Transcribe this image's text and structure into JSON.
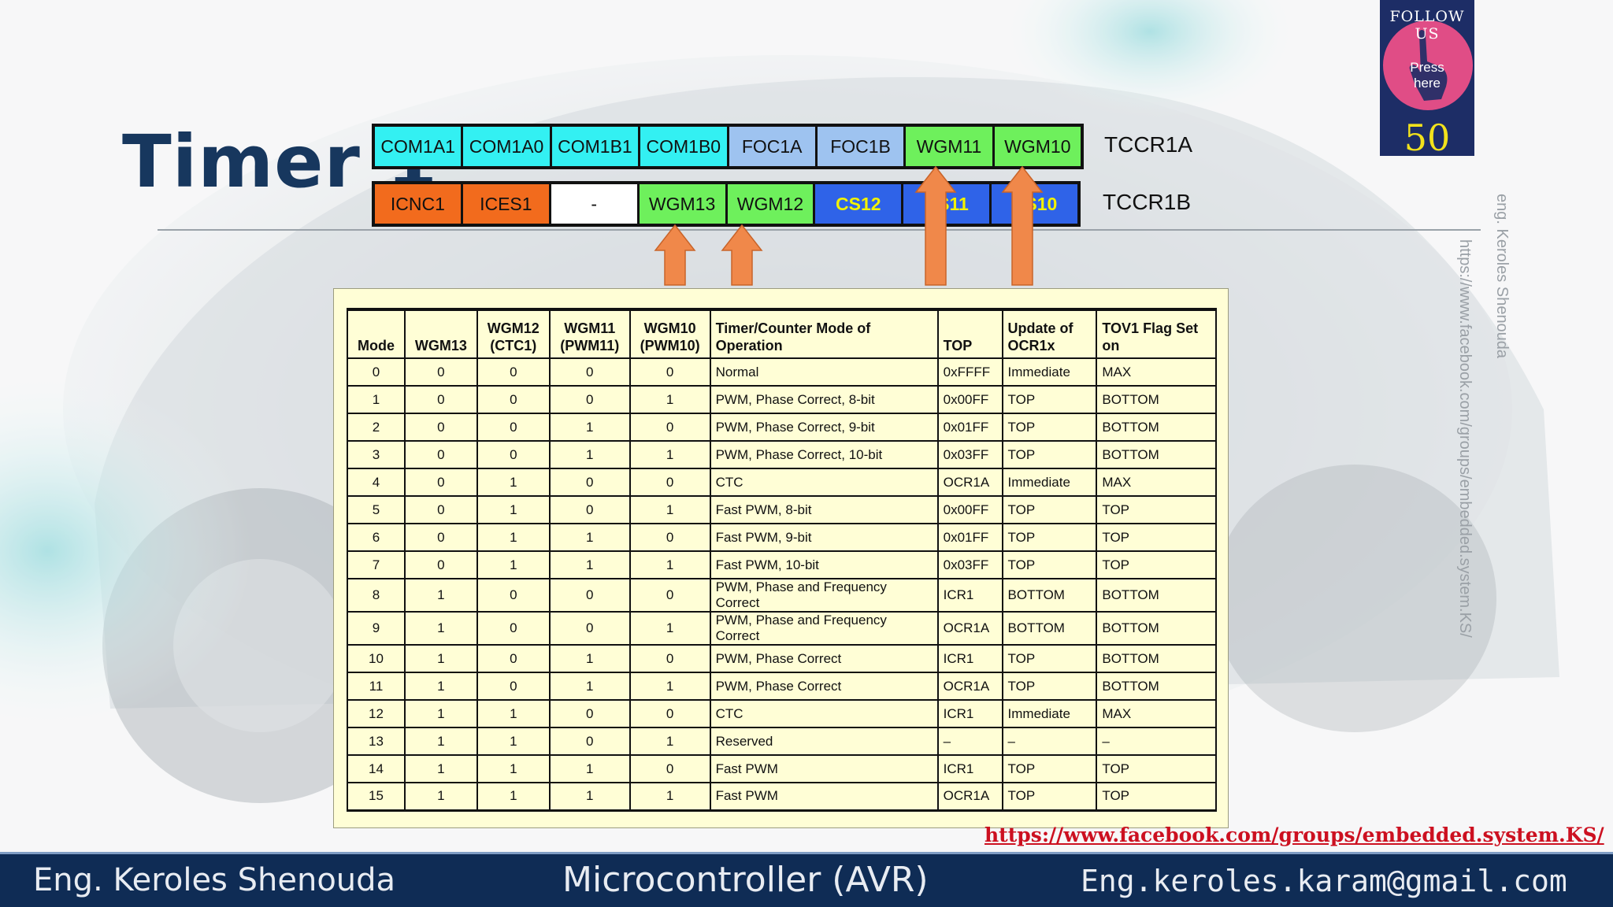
{
  "title": "Timer 1",
  "registers": {
    "tccr1a": {
      "name": "TCCR1A",
      "bits": [
        {
          "label": "COM1A1",
          "color": "#33f0f2",
          "text_color": "#111111"
        },
        {
          "label": "COM1A0",
          "color": "#33f0f2",
          "text_color": "#111111"
        },
        {
          "label": "COM1B1",
          "color": "#33f0f2",
          "text_color": "#111111"
        },
        {
          "label": "COM1B0",
          "color": "#33f0f2",
          "text_color": "#111111"
        },
        {
          "label": "FOC1A",
          "color": "#9ec3f0",
          "text_color": "#111111"
        },
        {
          "label": "FOC1B",
          "color": "#9ec3f0",
          "text_color": "#111111"
        },
        {
          "label": "WGM11",
          "color": "#6ef05c",
          "text_color": "#111111"
        },
        {
          "label": "WGM10",
          "color": "#6ef05c",
          "text_color": "#111111"
        }
      ]
    },
    "tccr1b": {
      "name": "TCCR1B",
      "bits": [
        {
          "label": "ICNC1",
          "color": "#f26b1d",
          "text_color": "#111111"
        },
        {
          "label": "ICES1",
          "color": "#f26b1d",
          "text_color": "#111111"
        },
        {
          "label": "-",
          "color": "#ffffff",
          "text_color": "#111111"
        },
        {
          "label": "WGM13",
          "color": "#6ef05c",
          "text_color": "#111111"
        },
        {
          "label": "WGM12",
          "color": "#6ef05c",
          "text_color": "#111111"
        },
        {
          "label": "CS12",
          "color": "#2f63e8",
          "text_color": "#f2f200"
        },
        {
          "label": "CS11",
          "color": "#2f63e8",
          "text_color": "#f2f200"
        },
        {
          "label": "CS10",
          "color": "#2f63e8",
          "text_color": "#f2f200"
        }
      ]
    }
  },
  "arrow_color": "#f0884a",
  "mode_table": {
    "headers": [
      "Mode",
      "WGM13",
      "WGM12 (CTC1)",
      "WGM11 (PWM11)",
      "WGM10 (PWM10)",
      "Timer/Counter Mode of Operation",
      "TOP",
      "Update of OCR1x",
      "TOV1 Flag Set on"
    ],
    "rows": [
      [
        "0",
        "0",
        "0",
        "0",
        "0",
        "Normal",
        "0xFFFF",
        "Immediate",
        "MAX"
      ],
      [
        "1",
        "0",
        "0",
        "0",
        "1",
        "PWM, Phase Correct, 8-bit",
        "0x00FF",
        "TOP",
        "BOTTOM"
      ],
      [
        "2",
        "0",
        "0",
        "1",
        "0",
        "PWM, Phase Correct, 9-bit",
        "0x01FF",
        "TOP",
        "BOTTOM"
      ],
      [
        "3",
        "0",
        "0",
        "1",
        "1",
        "PWM, Phase Correct, 10-bit",
        "0x03FF",
        "TOP",
        "BOTTOM"
      ],
      [
        "4",
        "0",
        "1",
        "0",
        "0",
        "CTC",
        "OCR1A",
        "Immediate",
        "MAX"
      ],
      [
        "5",
        "0",
        "1",
        "0",
        "1",
        "Fast PWM, 8-bit",
        "0x00FF",
        "TOP",
        "TOP"
      ],
      [
        "6",
        "0",
        "1",
        "1",
        "0",
        "Fast PWM, 9-bit",
        "0x01FF",
        "TOP",
        "TOP"
      ],
      [
        "7",
        "0",
        "1",
        "1",
        "1",
        "Fast PWM, 10-bit",
        "0x03FF",
        "TOP",
        "TOP"
      ],
      [
        "8",
        "1",
        "0",
        "0",
        "0",
        "PWM, Phase and Frequency Correct",
        "ICR1",
        "BOTTOM",
        "BOTTOM"
      ],
      [
        "9",
        "1",
        "0",
        "0",
        "1",
        "PWM, Phase and Frequency Correct",
        "OCR1A",
        "BOTTOM",
        "BOTTOM"
      ],
      [
        "10",
        "1",
        "0",
        "1",
        "0",
        "PWM, Phase Correct",
        "ICR1",
        "TOP",
        "BOTTOM"
      ],
      [
        "11",
        "1",
        "0",
        "1",
        "1",
        "PWM, Phase Correct",
        "OCR1A",
        "TOP",
        "BOTTOM"
      ],
      [
        "12",
        "1",
        "1",
        "0",
        "0",
        "CTC",
        "ICR1",
        "Immediate",
        "MAX"
      ],
      [
        "13",
        "1",
        "1",
        "0",
        "1",
        "Reserved",
        "–",
        "–",
        "–"
      ],
      [
        "14",
        "1",
        "1",
        "1",
        "0",
        "Fast PWM",
        "ICR1",
        "TOP",
        "TOP"
      ],
      [
        "15",
        "1",
        "1",
        "1",
        "1",
        "Fast PWM",
        "OCR1A",
        "TOP",
        "TOP"
      ]
    ]
  },
  "follow_badge": {
    "heading": "FOLLOW US",
    "press_line1": "Press",
    "press_line2": "here",
    "count": "50",
    "icon": "pointing-hand-icon"
  },
  "watermarks": {
    "author": "eng. Keroles Shenouda",
    "link": "https://www.facebook.com/groups/embedded.system.KS/"
  },
  "facebook_link": "https://www.facebook.com/groups/embedded.system.KS/",
  "footer": {
    "author": "Eng. Keroles Shenouda",
    "course": "Microcontroller (AVR)",
    "email": "Eng.keroles.karam@gmail.com"
  }
}
